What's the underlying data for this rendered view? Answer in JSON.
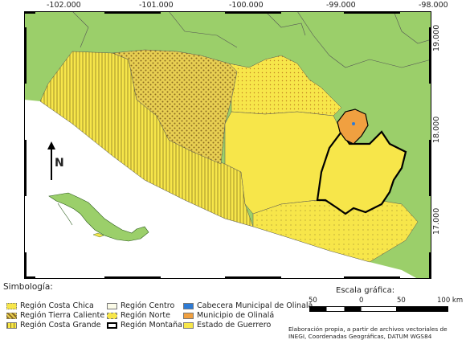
{
  "map": {
    "x_ticks": [
      "-102.000",
      "-101.000",
      "-100.000",
      "-99.000",
      "-98.000"
    ],
    "y_ticks": [
      "19.000",
      "18.000",
      "17.000"
    ],
    "north_label": "N"
  },
  "legend": {
    "title": "Simbología:",
    "items": [
      {
        "label": "Región Costa Chica",
        "pattern": "dots-light"
      },
      {
        "label": "Región Tierra Caliente",
        "pattern": "dots-brown"
      },
      {
        "label": "Región Costa Grande",
        "pattern": "vlines"
      },
      {
        "label": "Región Centro",
        "pattern": "plain-light"
      },
      {
        "label": "Región Norte",
        "pattern": "dots-orange"
      },
      {
        "label": "Región Montaña",
        "pattern": "black-outline"
      },
      {
        "label": "Cabecera Municipal de Olinalá",
        "pattern": "blue"
      },
      {
        "label": "Municipio de Olinalá",
        "pattern": "orange"
      },
      {
        "label": "Estado de Guerrero",
        "pattern": "yellow"
      }
    ]
  },
  "scale": {
    "title": "Escala gráfica:",
    "labels": [
      "50",
      "0",
      "50",
      "100 km"
    ]
  },
  "credits": {
    "line1": "Elaboración propia, a partir de archivos vectoriales de",
    "line2": "INEGI, Coordenadas Geográficas, DATUM WGS84"
  },
  "colors": {
    "land": "#9bcf6a",
    "sea": "#ffffff",
    "guerrero": "#f7e64a",
    "olinala": "#f0a040",
    "cabecera": "#2d7bd6",
    "frame": "#000000"
  }
}
